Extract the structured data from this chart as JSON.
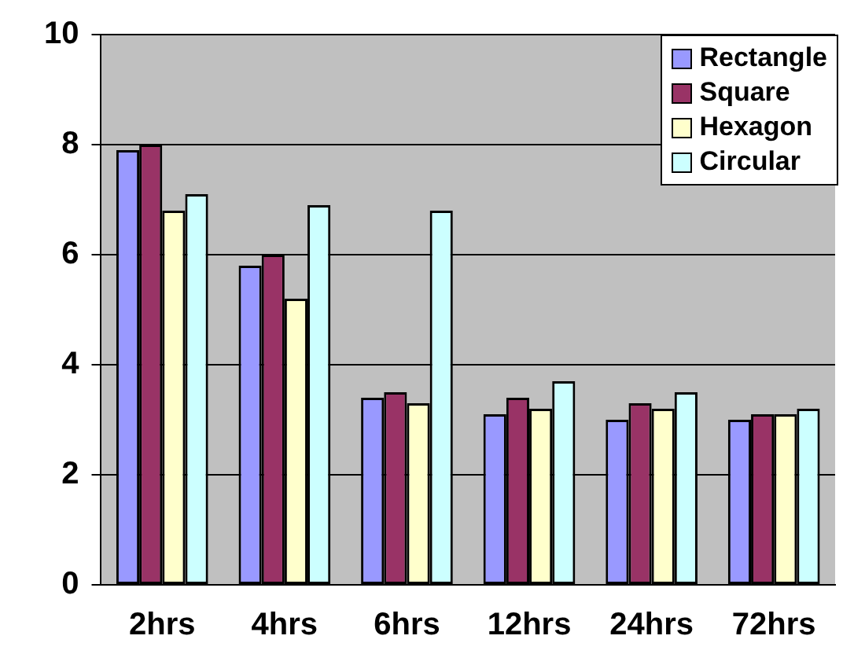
{
  "chart_data": {
    "type": "bar",
    "categories": [
      "2hrs",
      "4hrs",
      "6hrs",
      "12hrs",
      "24hrs",
      "72hrs"
    ],
    "series": [
      {
        "name": "Rectangle",
        "color": "#9999ff",
        "values": [
          7.9,
          5.8,
          3.4,
          3.1,
          3.0,
          3.0
        ]
      },
      {
        "name": "Square",
        "color": "#993366",
        "values": [
          8.0,
          6.0,
          3.5,
          3.4,
          3.3,
          3.1
        ]
      },
      {
        "name": "Hexagon",
        "color": "#ffffcc",
        "values": [
          6.8,
          5.2,
          3.3,
          3.2,
          3.2,
          3.1
        ]
      },
      {
        "name": "Circular",
        "color": "#ccffff",
        "values": [
          7.1,
          6.9,
          6.8,
          3.7,
          3.5,
          3.2
        ]
      }
    ],
    "ylim": [
      0,
      10
    ],
    "yticks": [
      0,
      2,
      4,
      6,
      8,
      10
    ],
    "grid": "y",
    "legend": "top right"
  }
}
